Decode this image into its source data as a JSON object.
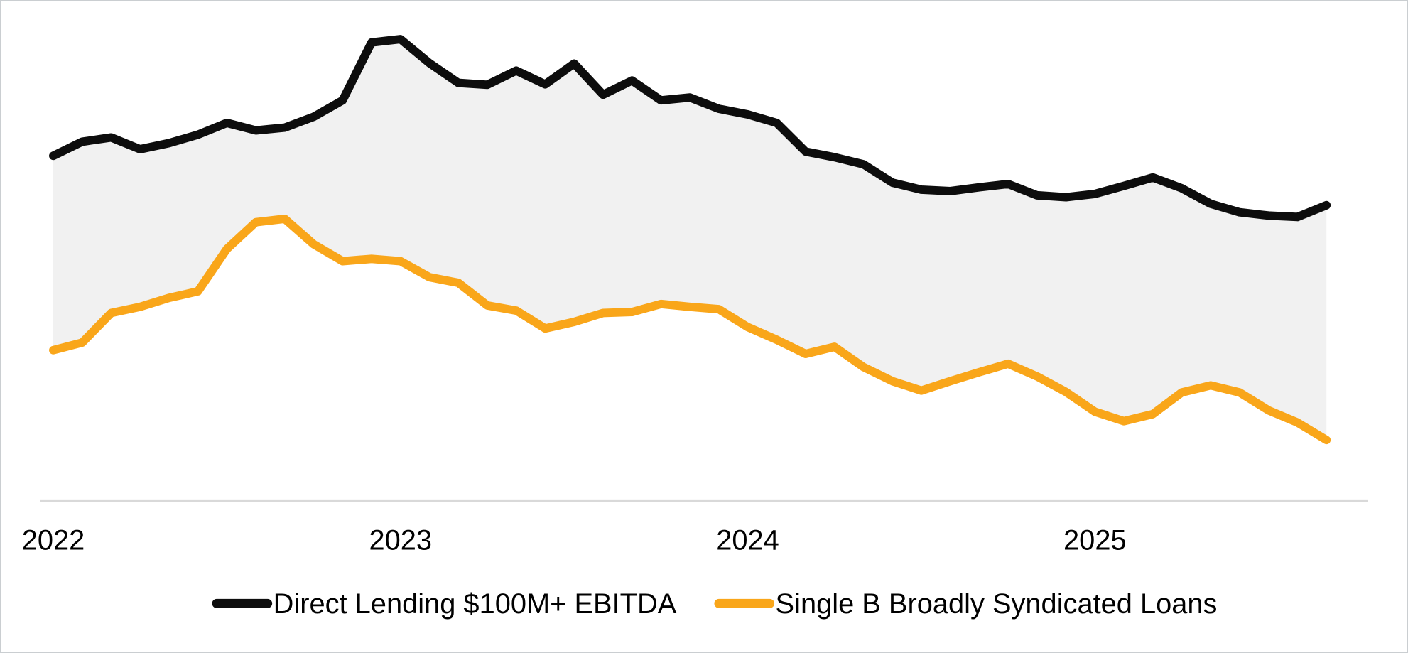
{
  "figure": {
    "background": "#ffffff",
    "border_color": "#caced1"
  },
  "chart_data": {
    "type": "line",
    "title": "",
    "xlabel": "",
    "ylabel": "",
    "x": [
      "2022-01",
      "2022-02",
      "2022-03",
      "2022-04",
      "2022-05",
      "2022-06",
      "2022-07",
      "2022-08",
      "2022-09",
      "2022-10",
      "2022-11",
      "2022-12",
      "2023-01",
      "2023-02",
      "2023-03",
      "2023-04",
      "2023-05",
      "2023-06",
      "2023-07",
      "2023-08",
      "2023-09",
      "2023-10",
      "2023-11",
      "2023-12",
      "2024-01",
      "2024-02",
      "2024-03",
      "2024-04",
      "2024-05",
      "2024-06",
      "2024-07",
      "2024-08",
      "2024-09",
      "2024-10",
      "2024-11",
      "2024-12",
      "2025-01",
      "2025-02",
      "2025-03",
      "2025-04",
      "2025-05",
      "2025-06",
      "2025-07",
      "2025-08",
      "2025-09"
    ],
    "x_axis": {
      "tick_labels": [
        "2022",
        "2023",
        "2024",
        "2025"
      ],
      "tick_month_indices": [
        0,
        12,
        24,
        36
      ],
      "axis_line_color": "#d9d9d9"
    },
    "y_axis": {
      "visible": false,
      "note": "No y-axis, gridlines or value labels are shown in the source image; series values below are relative plotted heights on a 0-100 scale of the plot area."
    },
    "series": [
      {
        "name": "Direct Lending $100M+ EBITDA",
        "color": "#0d0d0d",
        "values": [
          73.2,
          76.2,
          77.1,
          74.6,
          75.9,
          77.7,
          80.2,
          78.6,
          79.2,
          81.5,
          85.0,
          97.3,
          98.0,
          92.9,
          88.7,
          88.3,
          91.3,
          88.4,
          92.8,
          86.2,
          89.2,
          85.0,
          85.6,
          83.2,
          82.0,
          80.2,
          74.1,
          72.9,
          71.4,
          67.5,
          66.0,
          65.7,
          66.5,
          67.2,
          64.8,
          64.4,
          65.1,
          66.8,
          68.6,
          66.3,
          63.0,
          61.2,
          60.5,
          60.2,
          62.7
        ]
      },
      {
        "name": "Single B Broadly Syndicated Loans",
        "color": "#F9A61A",
        "values": [
          31.9,
          33.5,
          39.8,
          41.1,
          43.0,
          44.4,
          53.4,
          59.1,
          59.8,
          54.4,
          50.8,
          51.3,
          50.8,
          47.4,
          46.2,
          41.4,
          40.3,
          36.5,
          37.9,
          39.8,
          40.0,
          41.7,
          41.1,
          40.6,
          36.8,
          34.1,
          31.1,
          32.6,
          28.3,
          25.3,
          23.3,
          25.3,
          27.2,
          29.0,
          26.3,
          23.0,
          18.8,
          16.8,
          18.3,
          22.9,
          24.4,
          22.9,
          19.1,
          16.5,
          12.8
        ]
      }
    ],
    "fill_between": {
      "enabled": true,
      "between": [
        "Direct Lending $100M+ EBITDA",
        "Single B Broadly Syndicated Loans"
      ],
      "color": "#f1f1f1"
    },
    "legend": {
      "position": "bottom",
      "items": [
        {
          "label": "Direct Lending $100M+ EBITDA",
          "color": "#0d0d0d"
        },
        {
          "label": "Single B Broadly Syndicated Loans",
          "color": "#F9A61A"
        }
      ]
    }
  }
}
